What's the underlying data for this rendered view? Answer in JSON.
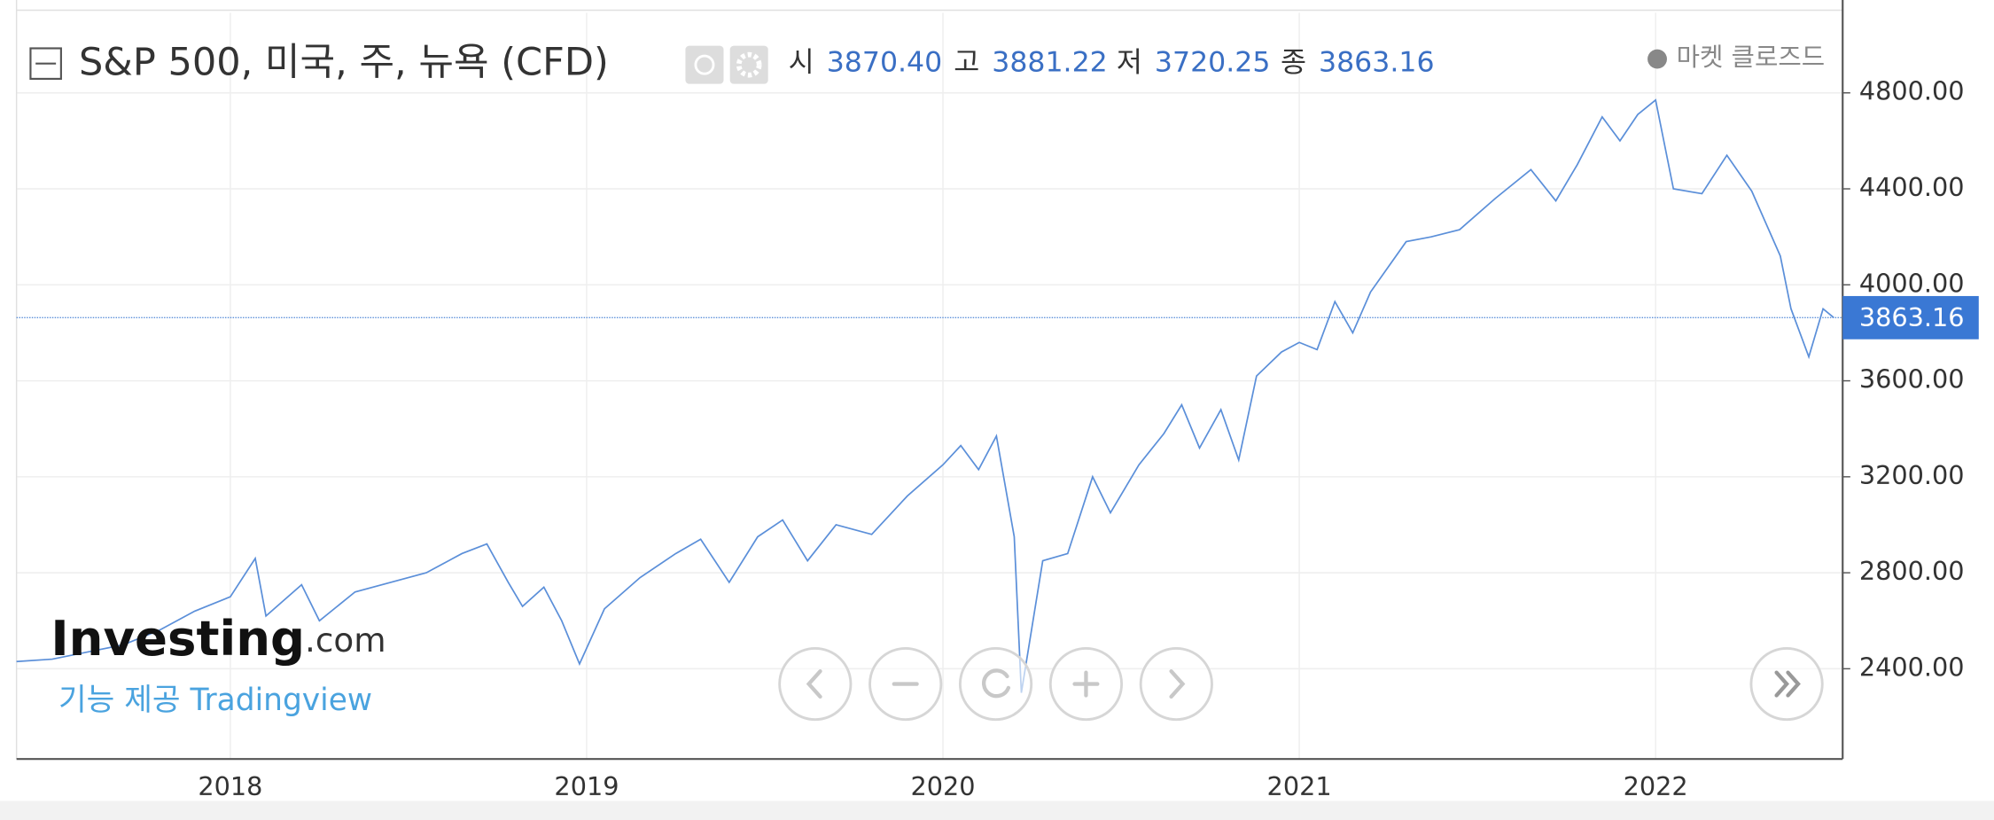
{
  "header": {
    "title": "S&P 500, 미국, 주, 뉴욕 (CFD)",
    "ohlc": [
      {
        "name": "시",
        "value": "3870.40"
      },
      {
        "name": "고",
        "value": "3881.22"
      },
      {
        "name": "저",
        "value": "3720.25"
      },
      {
        "name": "종",
        "value": "3863.16"
      }
    ],
    "status": "● 마켓 클로즈드",
    "logo": [
      "Investing",
      ".com"
    ],
    "credit": "기능 제공 Tradingview"
  },
  "chart_data": {
    "type": "line",
    "x": [
      2017.4,
      2017.5,
      2017.6,
      2017.7,
      2017.8,
      2017.9,
      2018.0,
      2018.07,
      2018.1,
      2018.2,
      2018.25,
      2018.35,
      2018.45,
      2018.55,
      2018.65,
      2018.72,
      2018.78,
      2018.82,
      2018.88,
      2018.93,
      2018.98,
      2019.05,
      2019.15,
      2019.25,
      2019.32,
      2019.4,
      2019.48,
      2019.55,
      2019.62,
      2019.7,
      2019.8,
      2019.9,
      2020.0,
      2020.05,
      2020.1,
      2020.15,
      2020.2,
      2020.22,
      2020.28,
      2020.35,
      2020.42,
      2020.47,
      2020.55,
      2020.62,
      2020.67,
      2020.72,
      2020.78,
      2020.83,
      2020.88,
      2020.95,
      2021.0,
      2021.05,
      2021.1,
      2021.15,
      2021.2,
      2021.3,
      2021.37,
      2021.45,
      2021.55,
      2021.65,
      2021.72,
      2021.78,
      2021.85,
      2021.9,
      2021.95,
      2022.0,
      2022.05,
      2022.13,
      2022.2,
      2022.27,
      2022.35,
      2022.38,
      2022.43,
      2022.47,
      2022.5
    ],
    "series": [
      {
        "name": "S&P 500",
        "color": "#5b8fd9",
        "values": [
          2430,
          2440,
          2470,
          2500,
          2560,
          2640,
          2700,
          2860,
          2620,
          2750,
          2600,
          2720,
          2760,
          2800,
          2880,
          2920,
          2760,
          2660,
          2740,
          2600,
          2420,
          2650,
          2780,
          2880,
          2940,
          2760,
          2950,
          3020,
          2850,
          3000,
          2960,
          3120,
          3250,
          3330,
          3230,
          3370,
          2950,
          2300,
          2850,
          2880,
          3200,
          3050,
          3250,
          3380,
          3500,
          3320,
          3480,
          3270,
          3620,
          3720,
          3760,
          3730,
          3930,
          3800,
          3970,
          4180,
          4200,
          4230,
          4360,
          4480,
          4350,
          4500,
          4700,
          4600,
          4710,
          4770,
          4400,
          4380,
          4540,
          4390,
          4120,
          3900,
          3700,
          3900,
          3863.16
        ]
      }
    ],
    "last": {
      "value": 3863.16,
      "label": "3863.16"
    },
    "xlim": [
      2017.4,
      2022.525
    ],
    "xticks": [
      2018,
      2019,
      2020,
      2021,
      2022
    ],
    "ylim": [
      2024,
      5134
    ],
    "yticks": [
      {
        "value": 2400,
        "label": "2400.00"
      },
      {
        "value": 2800,
        "label": "2800.00"
      },
      {
        "value": 3200,
        "label": "3200.00"
      },
      {
        "value": 3600,
        "label": "3600.00"
      },
      {
        "value": 4000,
        "label": "4000.00"
      },
      {
        "value": 4400,
        "label": "4400.00"
      },
      {
        "value": 4800,
        "label": "4800.00"
      }
    ],
    "grid": true
  }
}
